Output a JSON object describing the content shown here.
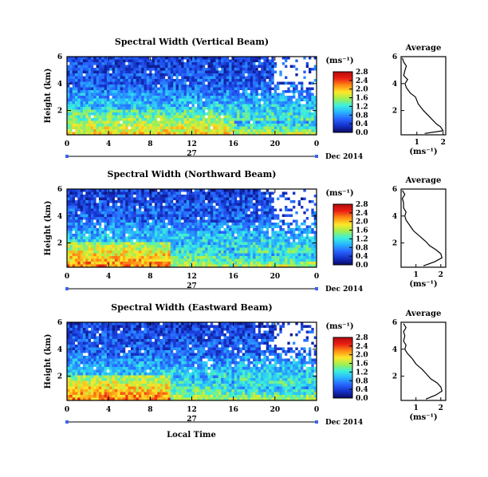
{
  "colors": {
    "colorbar_stops": [
      "#0a0a64",
      "#1432c8",
      "#2864ff",
      "#28b4ff",
      "#3cf0dc",
      "#a0f050",
      "#ffe628",
      "#ff8c14",
      "#eb1e14",
      "#b40a0a"
    ],
    "background_blue": "#3c64f0",
    "missing_data": "#ffffff"
  },
  "figure": {
    "xlabel": "Local Time"
  },
  "chart_data": [
    {
      "type": "heatmap",
      "title": "Spectral Width (Vertical Beam)",
      "ylabel": "Height (km)",
      "xlabel_day": "27",
      "date_label": "Dec 2014",
      "x_ticks": [
        "0",
        "4",
        "8",
        "12",
        "16",
        "20",
        "0"
      ],
      "y_ticks": [
        "2",
        "4",
        "6"
      ],
      "ylim": [
        0.2,
        6.0
      ],
      "xlim": [
        0,
        24
      ],
      "colorbar": {
        "unit": "(ms⁻¹)",
        "ticks": [
          "0.0",
          "0.4",
          "0.8",
          "1.2",
          "1.6",
          "2.0",
          "2.4",
          "2.8"
        ],
        "range": [
          0,
          2.8
        ]
      },
      "features": "Large spectral widths (2.0-2.8 ms⁻¹) below ~2 km from 0-16 LT, moderate (0.8-1.6) between 2-4 km, low (~0.4-0.8) above 4 km; white data gaps at upper right after ~21 LT.",
      "profile": {
        "title": "Average",
        "xlabel": "(ms⁻¹)",
        "x_ticks": [
          "1",
          "2"
        ],
        "y_ticks": [
          "2",
          "4",
          "6"
        ],
        "xlim": [
          0.4,
          2.1
        ],
        "heights": [
          0.3,
          0.5,
          0.8,
          1.0,
          1.3,
          1.6,
          2.0,
          2.5,
          3.0,
          3.3,
          3.7,
          4.0,
          4.3,
          4.6,
          5.0,
          5.3,
          5.6,
          5.9
        ],
        "values": [
          1.3,
          2.0,
          1.9,
          1.75,
          1.6,
          1.45,
          1.25,
          1.05,
          0.95,
          0.75,
          0.6,
          0.55,
          0.65,
          0.5,
          0.55,
          0.6,
          0.5,
          0.45
        ]
      }
    },
    {
      "type": "heatmap",
      "title": "Spectral Width (Northward Beam)",
      "ylabel": "Height (km)",
      "xlabel_day": "27",
      "date_label": "Dec 2014",
      "x_ticks": [
        "0",
        "4",
        "8",
        "12",
        "16",
        "20",
        "0"
      ],
      "y_ticks": [
        "2",
        "4",
        "6"
      ],
      "ylim": [
        0.2,
        6.0
      ],
      "xlim": [
        0,
        24
      ],
      "colorbar": {
        "unit": "(ms⁻¹)",
        "ticks": [
          "0.0",
          "0.4",
          "0.8",
          "1.2",
          "1.6",
          "2.0",
          "2.4",
          "2.8"
        ],
        "range": [
          0,
          2.8
        ]
      },
      "features": "Very large widths (2.4-2.8 ms⁻¹) below ~2 km from 0-10 LT, decreasing with height; scattered white gaps at upper levels.",
      "profile": {
        "title": "Average",
        "xlabel": "(ms⁻¹)",
        "x_ticks": [
          "1",
          "2"
        ],
        "y_ticks": [
          "2",
          "4",
          "6"
        ],
        "xlim": [
          0.4,
          2.2
        ],
        "heights": [
          0.3,
          0.6,
          0.9,
          1.2,
          1.5,
          1.8,
          2.1,
          2.5,
          2.9,
          3.3,
          3.7,
          4.0,
          4.3,
          4.6,
          5.0,
          5.3,
          5.6,
          5.9
        ],
        "values": [
          1.3,
          1.75,
          2.05,
          2.0,
          1.8,
          1.55,
          1.4,
          1.15,
          0.9,
          0.75,
          0.6,
          0.55,
          0.6,
          0.5,
          0.5,
          0.45,
          0.55,
          0.45
        ]
      }
    },
    {
      "type": "heatmap",
      "title": "Spectral Width (Eastward Beam)",
      "ylabel": "Height (km)",
      "xlabel_day": "27",
      "date_label": "Dec 2014",
      "x_ticks": [
        "0",
        "4",
        "8",
        "12",
        "16",
        "20",
        "0"
      ],
      "y_ticks": [
        "2",
        "4",
        "6"
      ],
      "ylim": [
        0.2,
        6.0
      ],
      "xlim": [
        0,
        24
      ],
      "colorbar": {
        "unit": "(ms⁻¹)",
        "ticks": [
          "0.0",
          "0.4",
          "0.8",
          "1.2",
          "1.6",
          "2.0",
          "2.4",
          "2.8"
        ],
        "range": [
          0,
          2.8
        ]
      },
      "features": "Large widths (2.4-2.8 ms⁻¹) below ~2 km from 0-8 LT; moderate values 2-3 km; low values aloft with white gaps at upper right.",
      "profile": {
        "title": "Average",
        "xlabel": "(ms⁻¹)",
        "x_ticks": [
          "1",
          "2"
        ],
        "y_ticks": [
          "2",
          "4",
          "6"
        ],
        "xlim": [
          0.4,
          2.2
        ],
        "heights": [
          0.3,
          0.6,
          0.9,
          1.2,
          1.5,
          1.8,
          2.1,
          2.5,
          2.9,
          3.3,
          3.7,
          4.0,
          4.3,
          4.6,
          5.0,
          5.3,
          5.6,
          5.9
        ],
        "values": [
          1.4,
          1.8,
          2.05,
          2.0,
          1.85,
          1.6,
          1.45,
          1.25,
          1.0,
          0.85,
          0.65,
          0.55,
          0.6,
          0.5,
          0.55,
          0.5,
          0.6,
          0.5
        ]
      }
    }
  ]
}
